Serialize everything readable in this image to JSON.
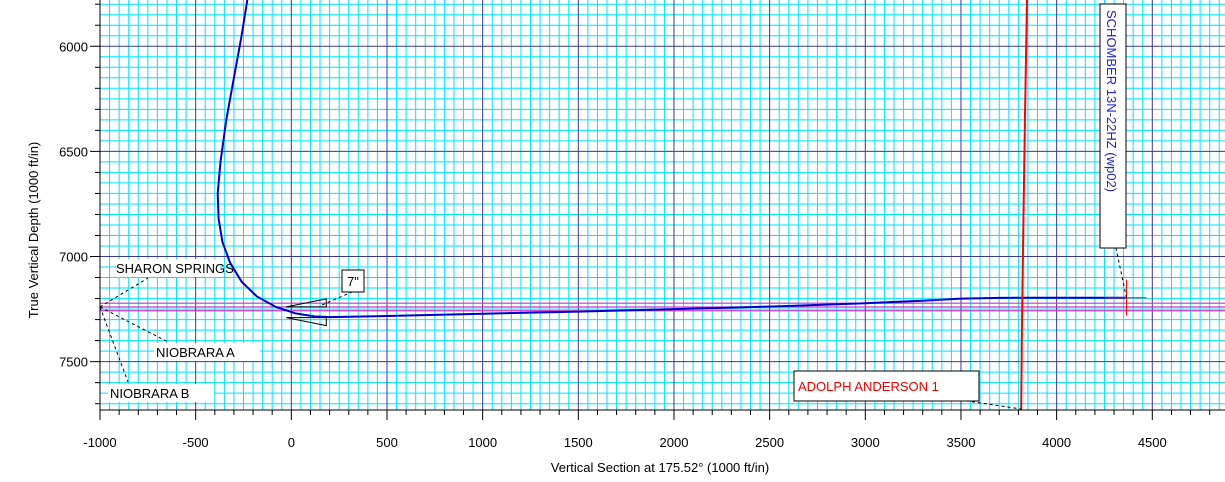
{
  "chart_data": {
    "type": "line",
    "xlabel": "Vertical Section at 175.52° (1000 ft/in)",
    "ylabel": "True Vertical Depth (1000 ft/in)",
    "xlim": [
      -1000,
      4880
    ],
    "ylim": [
      5780,
      7730
    ],
    "y_inverted": true,
    "x_ticks": [
      -1000,
      -500,
      0,
      500,
      1000,
      1500,
      2000,
      2500,
      3000,
      3500,
      4000,
      4500
    ],
    "y_ticks": [
      6000,
      6500,
      7000,
      7500
    ],
    "grid": true,
    "series": [
      {
        "name": "SCHOMBER 13N-22HZ (wp02)",
        "color": "#0000cc",
        "x": [
          -230,
          -260,
          -300,
          -340,
          -370,
          -385,
          -380,
          -360,
          -320,
          -260,
          -180,
          -80,
          20,
          120,
          200,
          500,
          1000,
          1500,
          2000,
          2500,
          3000,
          3300,
          3500,
          3700,
          3900,
          4100,
          4300,
          4360
        ],
        "y": [
          5780,
          5950,
          6150,
          6350,
          6550,
          6700,
          6820,
          6930,
          7030,
          7120,
          7190,
          7240,
          7270,
          7285,
          7288,
          7283,
          7272,
          7262,
          7250,
          7238,
          7222,
          7210,
          7200,
          7197,
          7196,
          7196,
          7196,
          7196
        ]
      },
      {
        "name": "ADOLPH ANDERSON 1",
        "color": "#ff0000",
        "x": [
          3845,
          3835,
          3825,
          3818,
          3815
        ],
        "y": [
          5780,
          6300,
          6900,
          7400,
          7730
        ]
      }
    ],
    "formations": [
      {
        "name": "SHARON SPRINGS",
        "tvd": 7222,
        "color": "#cc33cc"
      },
      {
        "name": "NIOBRARA A",
        "tvd": 7240,
        "color": "#cc33cc"
      },
      {
        "name": "NIOBRARA B",
        "tvd": 7258,
        "color": "#cc33cc"
      }
    ],
    "annotations": {
      "casing": "7\"",
      "well_label_blue": "SCHOMBER 13N-22HZ (wp02)",
      "well_label_red": "ADOLPH ANDERSON 1"
    }
  }
}
